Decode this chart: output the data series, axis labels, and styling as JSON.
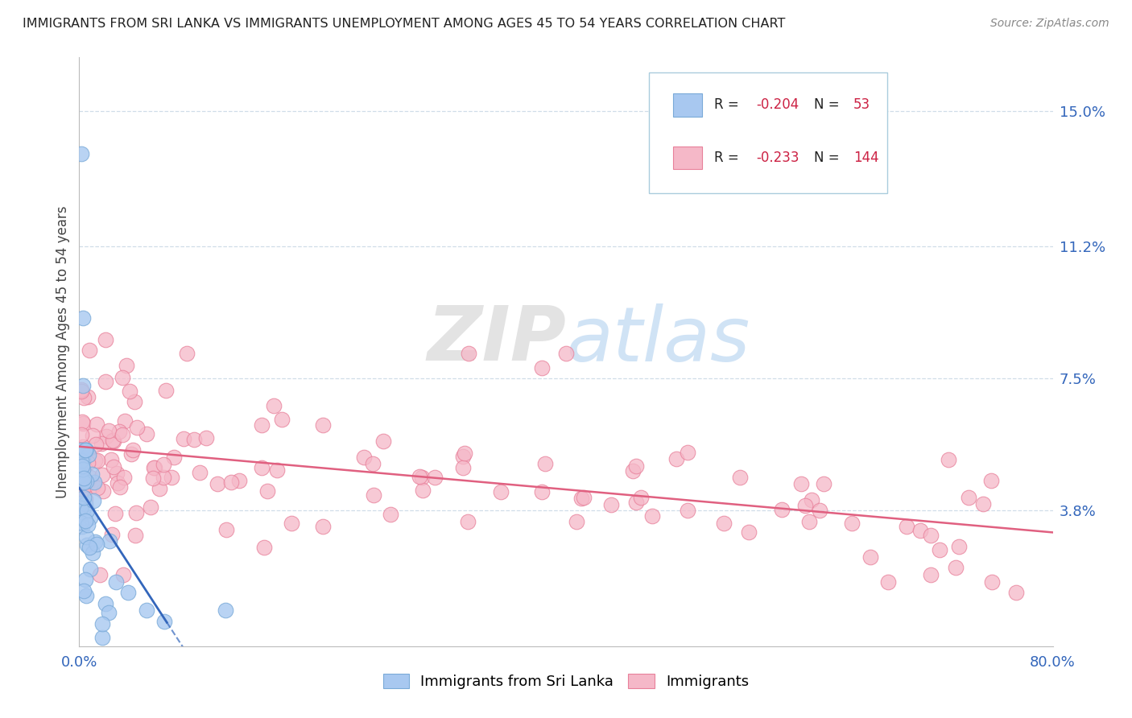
{
  "title": "IMMIGRANTS FROM SRI LANKA VS IMMIGRANTS UNEMPLOYMENT AMONG AGES 45 TO 54 YEARS CORRELATION CHART",
  "source": "Source: ZipAtlas.com",
  "ylabel": "Unemployment Among Ages 45 to 54 years",
  "xlim": [
    0.0,
    0.8
  ],
  "ylim": [
    0.0,
    0.165
  ],
  "yticks": [
    0.038,
    0.075,
    0.112,
    0.15
  ],
  "ytick_labels": [
    "3.8%",
    "7.5%",
    "11.2%",
    "15.0%"
  ],
  "xticks": [
    0.0,
    0.1,
    0.2,
    0.3,
    0.4,
    0.5,
    0.6,
    0.7,
    0.8
  ],
  "xtick_labels": [
    "0.0%",
    "",
    "",
    "",
    "",
    "",
    "",
    "",
    "80.0%"
  ],
  "legend1_R": "-0.204",
  "legend1_N": "53",
  "legend2_R": "-0.233",
  "legend2_N": "144",
  "color_blue": "#a8c8f0",
  "color_pink": "#f5b8c8",
  "edge_blue": "#7aaad8",
  "edge_pink": "#e8809a",
  "line_blue": "#3366bb",
  "line_pink": "#e06080",
  "watermark_zip": "ZIP",
  "watermark_atlas": "atlas",
  "bg_color": "#ffffff",
  "grid_color": "#d0dde8",
  "spine_color": "#bbbbbb"
}
